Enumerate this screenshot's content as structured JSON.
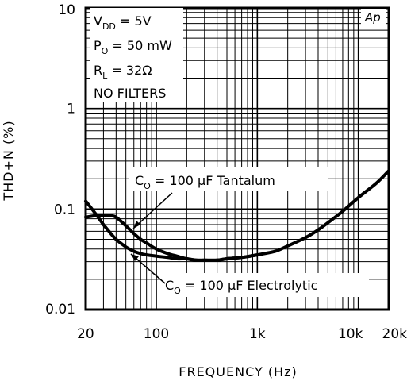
{
  "chart_data": {
    "type": "line",
    "xlabel": "FREQUENCY (Hz)",
    "ylabel": "THD+N (%)",
    "x_scale": "log",
    "y_scale": "log",
    "xlim": [
      20,
      20000
    ],
    "ylim": [
      0.01,
      10
    ],
    "grid": true,
    "x_ticks": [
      {
        "value": 20,
        "label": "20"
      },
      {
        "value": 100,
        "label": "100"
      },
      {
        "value": 1000,
        "label": "1k"
      },
      {
        "value": 10000,
        "label": "10k"
      },
      {
        "value": 20000,
        "label": "20k"
      }
    ],
    "y_ticks": [
      {
        "value": 0.01,
        "label": "0.01"
      },
      {
        "value": 0.1,
        "label": "0.1"
      },
      {
        "value": 1,
        "label": "1"
      },
      {
        "value": 10,
        "label": "10"
      }
    ],
    "conditions": {
      "vdd": {
        "main": "V",
        "sub": "DD",
        "rest": " = 5V"
      },
      "po": {
        "main": "P",
        "sub": "O",
        "rest": " = 50 mW"
      },
      "rl": {
        "main": "R",
        "sub": "L",
        "rest": " = 32Ω"
      },
      "filters": "NO FILTERS"
    },
    "watermark": "Ap",
    "series": [
      {
        "name": "Tantalum",
        "label": {
          "main": "C",
          "sub": "O",
          "rest": " = 100 µF Tantalum"
        },
        "x": [
          20,
          25,
          30,
          35,
          40,
          50,
          60,
          70,
          80,
          100,
          130,
          160,
          200,
          250,
          300,
          400,
          500,
          700,
          1000,
          1500,
          2000,
          3000,
          4000,
          5000,
          7000,
          10000,
          15000,
          20000
        ],
        "y": [
          0.083,
          0.086,
          0.087,
          0.086,
          0.083,
          0.068,
          0.057,
          0.05,
          0.046,
          0.04,
          0.036,
          0.034,
          0.032,
          0.031,
          0.031,
          0.031,
          0.032,
          0.033,
          0.035,
          0.038,
          0.043,
          0.052,
          0.062,
          0.073,
          0.095,
          0.13,
          0.18,
          0.24
        ]
      },
      {
        "name": "Electrolytic",
        "label": {
          "main": "C",
          "sub": "O",
          "rest": " = 100 µF Electrolytic"
        },
        "x": [
          20,
          25,
          30,
          35,
          40,
          50,
          60,
          70,
          80,
          100,
          130,
          160,
          200,
          250,
          300,
          400,
          500,
          700,
          1000
        ],
        "y": [
          0.12,
          0.09,
          0.07,
          0.058,
          0.05,
          0.042,
          0.038,
          0.036,
          0.035,
          0.034,
          0.033,
          0.032,
          0.032,
          0.031,
          0.031,
          0.031,
          0.032,
          0.033,
          0.035
        ]
      }
    ]
  }
}
